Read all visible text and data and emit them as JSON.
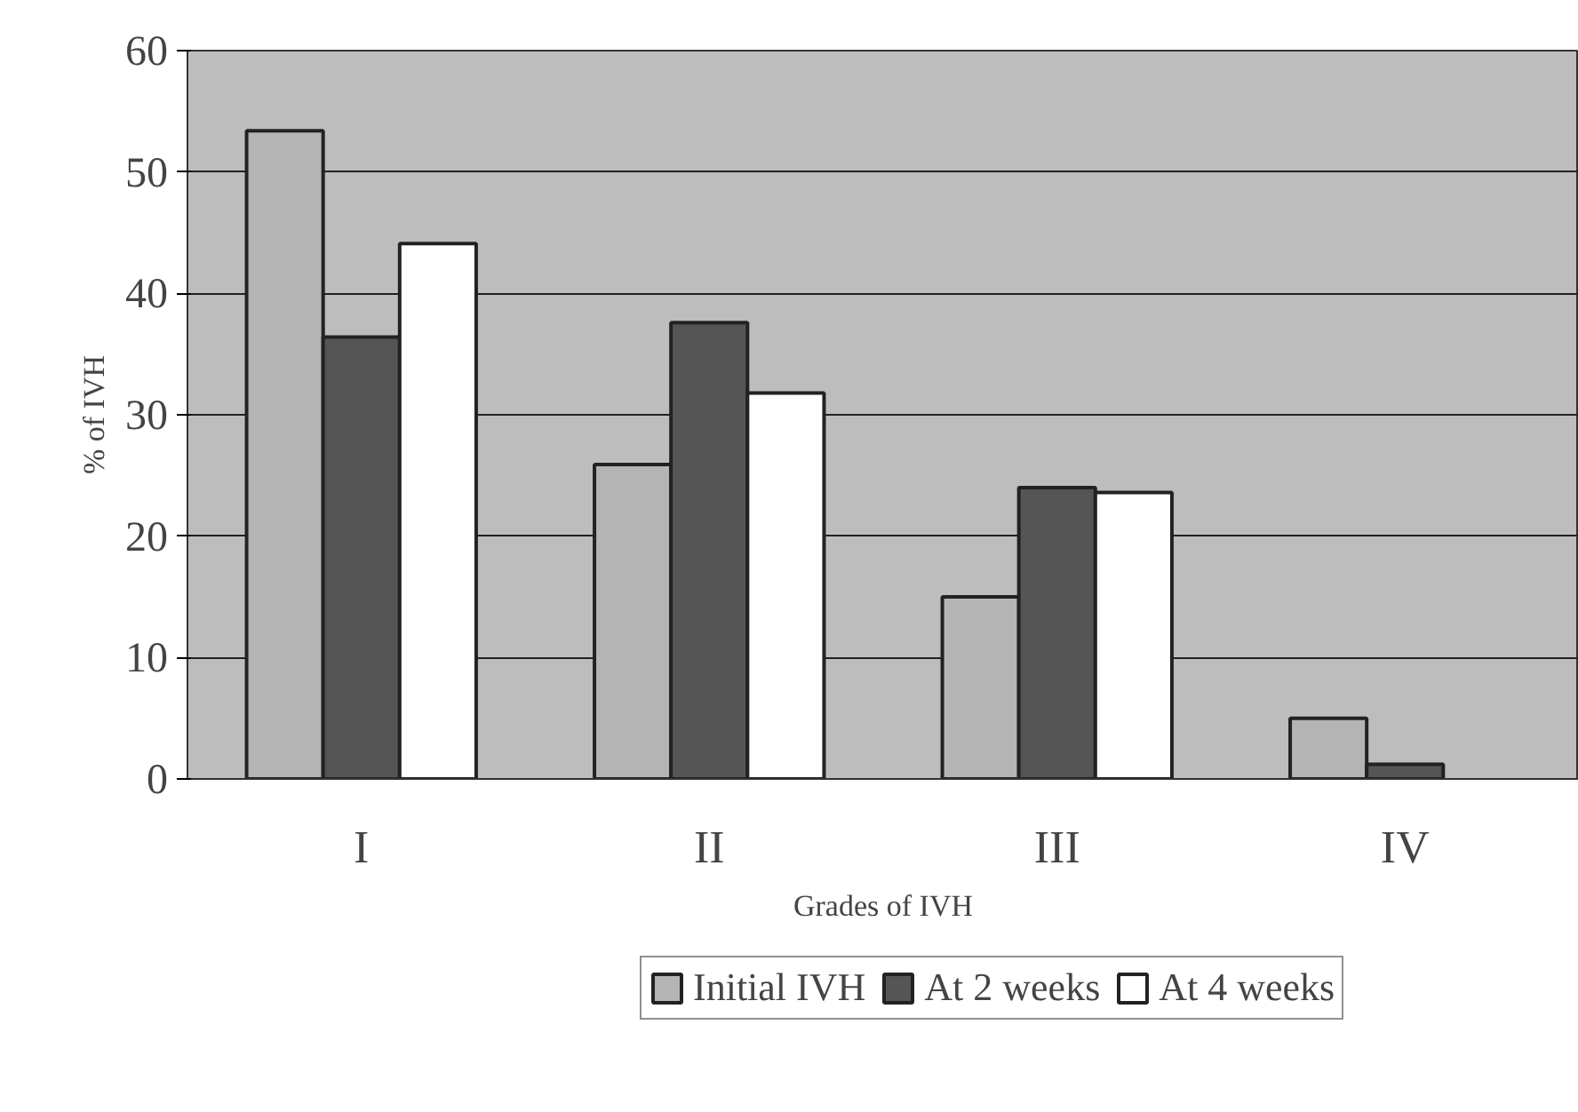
{
  "chart_data": {
    "type": "bar",
    "xlabel": "Grades of IVH",
    "ylabel": "% of IVH",
    "categories": [
      "I",
      "II",
      "III",
      "IV"
    ],
    "series": [
      {
        "name": "Initial IVH",
        "color": "#b4b4b4",
        "values": [
          53.4,
          25.9,
          15.0,
          5.0
        ]
      },
      {
        "name": "At 2 weeks",
        "color": "#555555",
        "values": [
          36.4,
          37.6,
          24.0,
          1.2
        ]
      },
      {
        "name": "At 4 weeks",
        "color": "#ffffff",
        "values": [
          44.1,
          31.8,
          23.6,
          null
        ]
      }
    ],
    "ylim": [
      0,
      60
    ],
    "yticks": [
      0,
      10,
      20,
      30,
      40,
      50,
      60
    ],
    "grid": "y",
    "legend": "bottom"
  }
}
